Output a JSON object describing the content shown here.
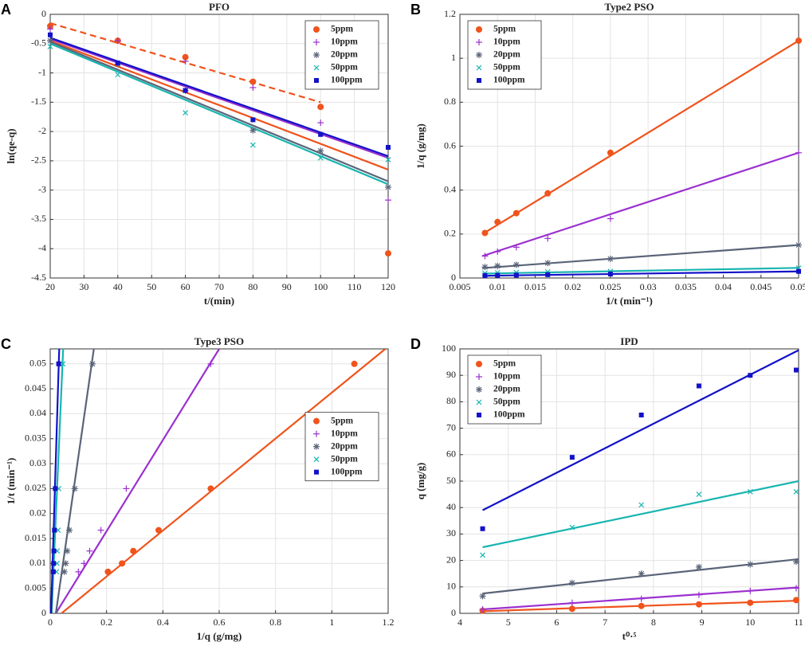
{
  "chart_data": [
    {
      "type": "scatter",
      "label": "A",
      "title": "PFO",
      "x_label": "t/(min)",
      "y_label": "ln(qe-q)",
      "xlim": [
        20,
        120
      ],
      "xticks": [
        20,
        30,
        40,
        50,
        60,
        70,
        80,
        90,
        100,
        110,
        120
      ],
      "ylim": [
        -4.5,
        0
      ],
      "yticks": [
        -4.5,
        -4,
        -3.5,
        -3,
        -2.5,
        -2,
        -1.5,
        -1,
        -0.5,
        0
      ],
      "grid": true,
      "legend": "upper right",
      "series": [
        {
          "name": "5ppm",
          "color": "#f0531c",
          "marker": "circle",
          "x": [
            20,
            40,
            60,
            80,
            100,
            120
          ],
          "values": [
            -0.2,
            -0.45,
            -0.73,
            -1.15,
            -1.58,
            -4.08
          ],
          "fits": [
            {
              "x": [
                20,
                100
              ],
              "values": [
                -0.15,
                -1.5
              ],
              "dashed": true
            },
            {
              "x": [
                20,
                120
              ],
              "values": [
                -0.45,
                -2.65
              ],
              "dashed": false
            }
          ]
        },
        {
          "name": "10ppm",
          "color": "#9b30d0",
          "marker": "plus",
          "x": [
            20,
            40,
            60,
            80,
            100,
            120
          ],
          "values": [
            -0.25,
            -0.45,
            -0.8,
            -1.25,
            -1.85,
            -3.17
          ],
          "fits": [
            {
              "x": [
                20,
                120
              ],
              "values": [
                -0.42,
                -2.45
              ],
              "dashed": false
            }
          ]
        },
        {
          "name": "20ppm",
          "color": "#5a6478",
          "marker": "asterisk",
          "x": [
            20,
            40,
            60,
            80,
            100,
            120
          ],
          "values": [
            -0.45,
            -0.85,
            -1.3,
            -1.98,
            -2.33,
            -2.95
          ],
          "fits": [
            {
              "x": [
                20,
                120
              ],
              "values": [
                -0.47,
                -2.85
              ],
              "dashed": false
            }
          ]
        },
        {
          "name": "50ppm",
          "color": "#19b5b0",
          "marker": "cross",
          "x": [
            20,
            40,
            60,
            80,
            100,
            120
          ],
          "values": [
            -0.55,
            -1.03,
            -1.68,
            -2.23,
            -2.45,
            -2.48
          ],
          "fits": [
            {
              "x": [
                20,
                120
              ],
              "values": [
                -0.5,
                -2.9
              ],
              "dashed": false
            }
          ]
        },
        {
          "name": "100ppm",
          "color": "#1212c8",
          "marker": "square",
          "x": [
            20,
            40,
            60,
            80,
            100,
            120
          ],
          "values": [
            -0.35,
            -0.83,
            -1.3,
            -1.8,
            -2.05,
            -2.27
          ],
          "fits": [
            {
              "x": [
                20,
                120
              ],
              "values": [
                -0.4,
                -2.42
              ],
              "dashed": false
            }
          ]
        }
      ]
    },
    {
      "type": "scatter",
      "label": "B",
      "title": "Type2 PSO",
      "x_label": "1/t (min⁻¹)",
      "y_label": "1/q (g/mg)",
      "xlim": [
        0.005,
        0.05
      ],
      "xticks": [
        0.005,
        0.01,
        0.015,
        0.02,
        0.025,
        0.03,
        0.035,
        0.04,
        0.045,
        0.05
      ],
      "ylim": [
        0,
        1.2
      ],
      "yticks": [
        0,
        0.2,
        0.4,
        0.6,
        0.8,
        1,
        1.2
      ],
      "grid": true,
      "legend": "upper left",
      "series": [
        {
          "name": "5ppm",
          "color": "#f0531c",
          "marker": "circle",
          "x": [
            0.00833,
            0.01,
            0.0125,
            0.01667,
            0.025,
            0.05
          ],
          "values": [
            0.205,
            0.255,
            0.295,
            0.385,
            0.57,
            1.08
          ],
          "fits": [
            {
              "x": [
                0.008,
                0.05
              ],
              "values": [
                0.2,
                1.08
              ],
              "dashed": false
            }
          ]
        },
        {
          "name": "10ppm",
          "color": "#9b30d0",
          "marker": "plus",
          "x": [
            0.00833,
            0.01,
            0.0125,
            0.01667,
            0.025,
            0.05
          ],
          "values": [
            0.1,
            0.12,
            0.14,
            0.18,
            0.27,
            0.57
          ],
          "fits": [
            {
              "x": [
                0.008,
                0.05
              ],
              "values": [
                0.1,
                0.57
              ],
              "dashed": false
            }
          ]
        },
        {
          "name": "20ppm",
          "color": "#5a6478",
          "marker": "asterisk",
          "x": [
            0.00833,
            0.01,
            0.0125,
            0.01667,
            0.025,
            0.05
          ],
          "values": [
            0.05,
            0.055,
            0.06,
            0.068,
            0.087,
            0.15
          ],
          "fits": [
            {
              "x": [
                0.008,
                0.05
              ],
              "values": [
                0.045,
                0.15
              ],
              "dashed": false
            }
          ]
        },
        {
          "name": "50ppm",
          "color": "#19b5b0",
          "marker": "cross",
          "x": [
            0.00833,
            0.01,
            0.0125,
            0.01667,
            0.025,
            0.05
          ],
          "values": [
            0.022,
            0.024,
            0.025,
            0.028,
            0.03,
            0.045
          ],
          "fits": [
            {
              "x": [
                0.008,
                0.05
              ],
              "values": [
                0.02,
                0.046
              ],
              "dashed": false
            }
          ]
        },
        {
          "name": "100ppm",
          "color": "#1212c8",
          "marker": "square",
          "x": [
            0.00833,
            0.01,
            0.0125,
            0.01667,
            0.025,
            0.05
          ],
          "values": [
            0.011,
            0.012,
            0.013,
            0.015,
            0.018,
            0.03
          ],
          "fits": [
            {
              "x": [
                0.008,
                0.05
              ],
              "values": [
                0.01,
                0.03
              ],
              "dashed": false
            }
          ]
        }
      ]
    },
    {
      "type": "scatter",
      "label": "C",
      "title": "Type3 PSO",
      "x_label": "1/q (g/mg)",
      "y_label": "1/t (min⁻¹)",
      "xlim": [
        0,
        1.2
      ],
      "xticks": [
        0,
        0.2,
        0.4,
        0.6,
        0.8,
        1,
        1.2
      ],
      "ylim": [
        0,
        0.053
      ],
      "yticks": [
        0,
        0.005,
        0.01,
        0.015,
        0.02,
        0.025,
        0.03,
        0.035,
        0.04,
        0.045,
        0.05
      ],
      "grid": true,
      "legend": "center right",
      "series": [
        {
          "name": "5ppm",
          "color": "#f0531c",
          "marker": "circle",
          "x": [
            0.205,
            0.255,
            0.295,
            0.385,
            0.57,
            1.08
          ],
          "values": [
            0.00833,
            0.01,
            0.0125,
            0.01667,
            0.025,
            0.05
          ],
          "fits": [
            {
              "x": [
                0.04,
                1.19
              ],
              "values": [
                0,
                0.053
              ],
              "dashed": false
            }
          ]
        },
        {
          "name": "10ppm",
          "color": "#9b30d0",
          "marker": "plus",
          "x": [
            0.1,
            0.12,
            0.14,
            0.18,
            0.27,
            0.57
          ],
          "values": [
            0.00833,
            0.01,
            0.0125,
            0.01667,
            0.025,
            0.05
          ],
          "fits": [
            {
              "x": [
                0.02,
                0.6
              ],
              "values": [
                0,
                0.053
              ],
              "dashed": false
            }
          ]
        },
        {
          "name": "20ppm",
          "color": "#5a6478",
          "marker": "asterisk",
          "x": [
            0.05,
            0.055,
            0.06,
            0.068,
            0.087,
            0.15
          ],
          "values": [
            0.00833,
            0.01,
            0.0125,
            0.01667,
            0.025,
            0.05
          ],
          "fits": [
            {
              "x": [
                0.02,
                0.155
              ],
              "values": [
                0,
                0.053
              ],
              "dashed": false
            }
          ]
        },
        {
          "name": "50ppm",
          "color": "#19b5b0",
          "marker": "cross",
          "x": [
            0.022,
            0.024,
            0.025,
            0.028,
            0.03,
            0.045
          ],
          "values": [
            0.00833,
            0.01,
            0.0125,
            0.01667,
            0.025,
            0.05
          ],
          "fits": [
            {
              "x": [
                0.005,
                0.046
              ],
              "values": [
                0,
                0.053
              ],
              "dashed": false
            }
          ]
        },
        {
          "name": "100ppm",
          "color": "#1212c8",
          "marker": "square",
          "x": [
            0.011,
            0.012,
            0.013,
            0.015,
            0.018,
            0.03
          ],
          "values": [
            0.00833,
            0.01,
            0.0125,
            0.01667,
            0.025,
            0.05
          ],
          "fits": [
            {
              "x": [
                0.003,
                0.032
              ],
              "values": [
                0,
                0.053
              ],
              "dashed": false
            }
          ]
        }
      ]
    },
    {
      "type": "scatter",
      "label": "D",
      "title": "IPD",
      "x_label": "t⁰·⁵",
      "y_label": "q (mg/g)",
      "xlim": [
        4,
        11
      ],
      "xticks": [
        4,
        5,
        6,
        7,
        8,
        9,
        10,
        11
      ],
      "ylim": [
        0,
        100
      ],
      "yticks": [
        0,
        10,
        20,
        30,
        40,
        50,
        60,
        70,
        80,
        90,
        100
      ],
      "grid": true,
      "legend": "upper left",
      "series": [
        {
          "name": "5ppm",
          "color": "#f0531c",
          "marker": "circle",
          "x": [
            4.47,
            6.32,
            7.75,
            8.94,
            10,
            10.95
          ],
          "values": [
            1,
            1.7,
            2.8,
            3.4,
            4,
            5
          ],
          "fits": [
            {
              "x": [
                4.47,
                11
              ],
              "values": [
                0.8,
                4.8
              ],
              "dashed": false
            }
          ]
        },
        {
          "name": "10ppm",
          "color": "#9b30d0",
          "marker": "plus",
          "x": [
            4.47,
            6.32,
            7.75,
            8.94,
            10,
            10.95
          ],
          "values": [
            1.5,
            4,
            5.5,
            7,
            8.5,
            9.5
          ],
          "fits": [
            {
              "x": [
                4.47,
                11
              ],
              "values": [
                1.5,
                9.8
              ],
              "dashed": false
            }
          ]
        },
        {
          "name": "20ppm",
          "color": "#5a6478",
          "marker": "asterisk",
          "x": [
            4.47,
            6.32,
            7.75,
            8.94,
            10,
            10.95
          ],
          "values": [
            6.5,
            11.5,
            15,
            17.5,
            18.5,
            19.5
          ],
          "fits": [
            {
              "x": [
                4.47,
                11
              ],
              "values": [
                7.5,
                20.5
              ],
              "dashed": false
            }
          ]
        },
        {
          "name": "50ppm",
          "color": "#19b5b0",
          "marker": "cross",
          "x": [
            4.47,
            6.32,
            7.75,
            8.94,
            10,
            10.95
          ],
          "values": [
            22,
            32.5,
            41,
            45,
            46,
            46
          ],
          "fits": [
            {
              "x": [
                4.47,
                11
              ],
              "values": [
                25,
                50
              ],
              "dashed": false
            }
          ]
        },
        {
          "name": "100ppm",
          "color": "#1212c8",
          "marker": "square",
          "x": [
            4.47,
            6.32,
            7.75,
            8.94,
            10,
            10.95
          ],
          "values": [
            32,
            59,
            75,
            86,
            90,
            92
          ],
          "fits": [
            {
              "x": [
                4.47,
                11
              ],
              "values": [
                39,
                99.5
              ],
              "dashed": false
            }
          ]
        }
      ]
    }
  ]
}
